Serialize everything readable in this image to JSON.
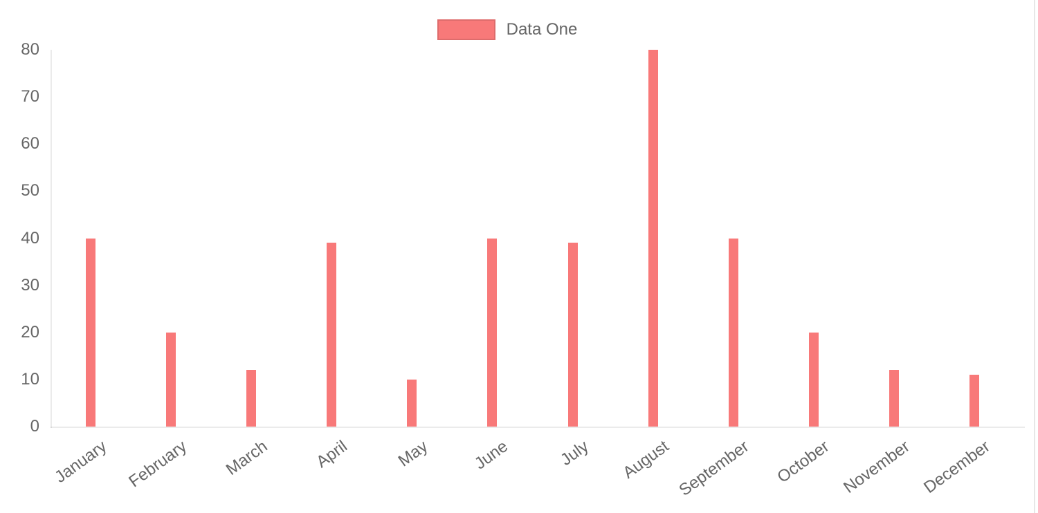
{
  "legend": {
    "label": "Data One"
  },
  "colors": {
    "bar": "#f87979",
    "axis_text": "#666666",
    "axis_line": "rgba(0,0,0,0.08)",
    "legend_border": "rgba(0,0,0,0.10)"
  },
  "chart_data": {
    "type": "bar",
    "title": "",
    "xlabel": "",
    "ylabel": "",
    "categories": [
      "January",
      "February",
      "March",
      "April",
      "May",
      "June",
      "July",
      "August",
      "September",
      "October",
      "November",
      "December"
    ],
    "series": [
      {
        "name": "Data One",
        "color": "#f87979",
        "values": [
          40,
          20,
          12,
          39,
          10,
          40,
          39,
          80,
          40,
          20,
          12,
          11
        ]
      }
    ],
    "ylim": [
      0,
      80
    ],
    "y_ticks": [
      0,
      10,
      20,
      30,
      40,
      50,
      60,
      70,
      80
    ],
    "grid": false,
    "legend_position": "top"
  }
}
